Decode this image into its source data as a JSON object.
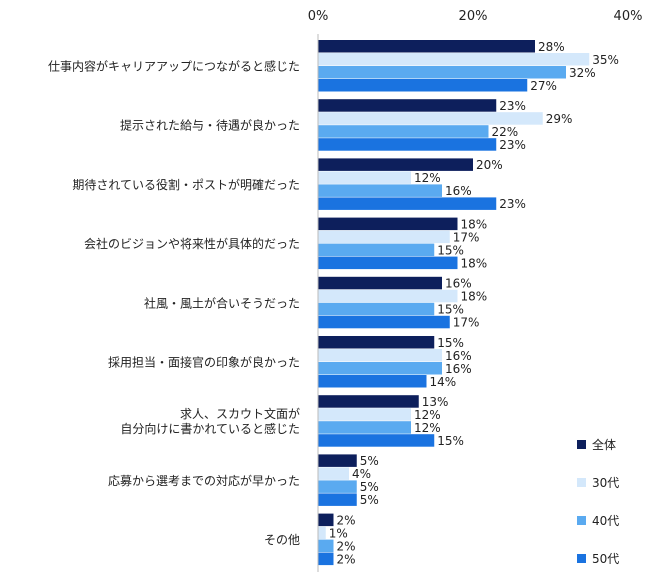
{
  "chart_data": {
    "type": "bar",
    "orientation": "horizontal",
    "categories": [
      "仕事内容がキャリアアップにつながると感じた",
      "提示された給与・待遇が良かった",
      "期待されている役割・ポストが明確だった",
      "会社のビジョンや将来性が具体的だった",
      "社風・風土が合いそうだった",
      "採用担当・面接官の印象が良かった",
      [
        "求人、スカウト文面が",
        "自分向けに書かれていると感じた"
      ],
      "応募から選考までの対応が早かった",
      "その他"
    ],
    "series": [
      {
        "name": "全体",
        "color": "#0d1f5c",
        "values": [
          28,
          23,
          20,
          18,
          16,
          15,
          13,
          5,
          2
        ]
      },
      {
        "name": "30代",
        "color": "#d4e8fb",
        "values": [
          35,
          29,
          12,
          17,
          18,
          16,
          12,
          4,
          1
        ]
      },
      {
        "name": "40代",
        "color": "#5aaaf0",
        "values": [
          32,
          22,
          16,
          15,
          15,
          16,
          12,
          5,
          2
        ]
      },
      {
        "name": "50代",
        "color": "#1a73e0",
        "values": [
          27,
          23,
          23,
          18,
          17,
          14,
          15,
          5,
          2
        ]
      }
    ],
    "value_suffix": "%",
    "xlim": [
      0,
      40
    ],
    "xticks": [
      0,
      20,
      40
    ],
    "xtick_labels": [
      "0%",
      "20%",
      "40%"
    ],
    "grid": false,
    "legend_position": "bottom-right"
  }
}
